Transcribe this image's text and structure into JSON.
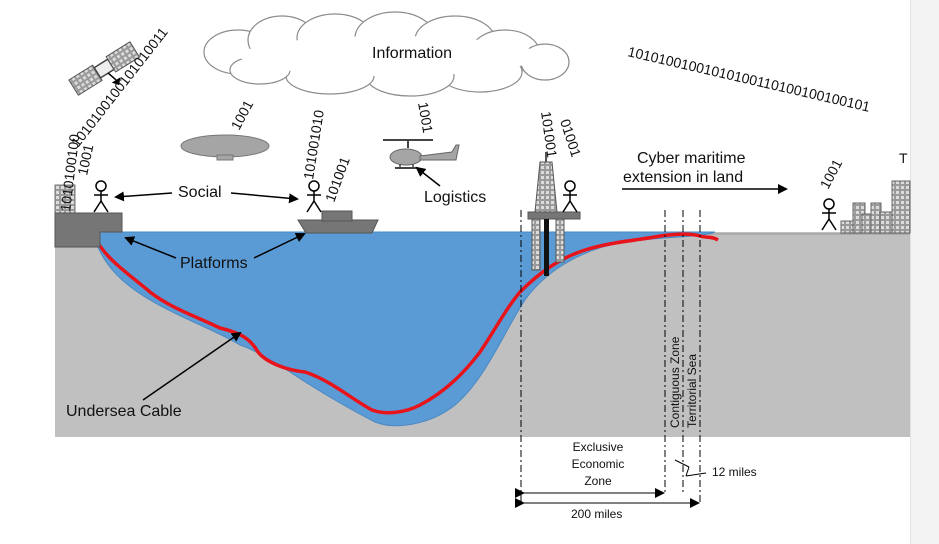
{
  "labels": {
    "information": "Information",
    "social": "Social",
    "logistics": "Logistics",
    "platforms": "Platforms",
    "cable": "Undersea Cable",
    "cyber_line1": "Cyber maritime",
    "cyber_line2": "extension in land",
    "eez_line1": "Exclusive",
    "eez_line2": "Economic",
    "eez_line3": "Zone",
    "contiguous": "Contiguous Zone",
    "territorial": "Territorial Sea",
    "miles12": "12 miles",
    "miles200": "200 miles"
  },
  "binary": {
    "satellite": "1010100100101010011",
    "left_vertical": "1010100100",
    "left_person": "1001",
    "blimp": "1001",
    "ship_long": "101001010",
    "ship_short": "101001",
    "helicopter": "1001",
    "rig_left": "101001",
    "rig_right": "01001",
    "right_arc": "10101001001010100110100100100101",
    "right_person": "1001"
  },
  "colors": {
    "sea": "#5b9bd5",
    "land": "#c0c0c0",
    "cable": "#e8141b",
    "platform": "#767676"
  }
}
